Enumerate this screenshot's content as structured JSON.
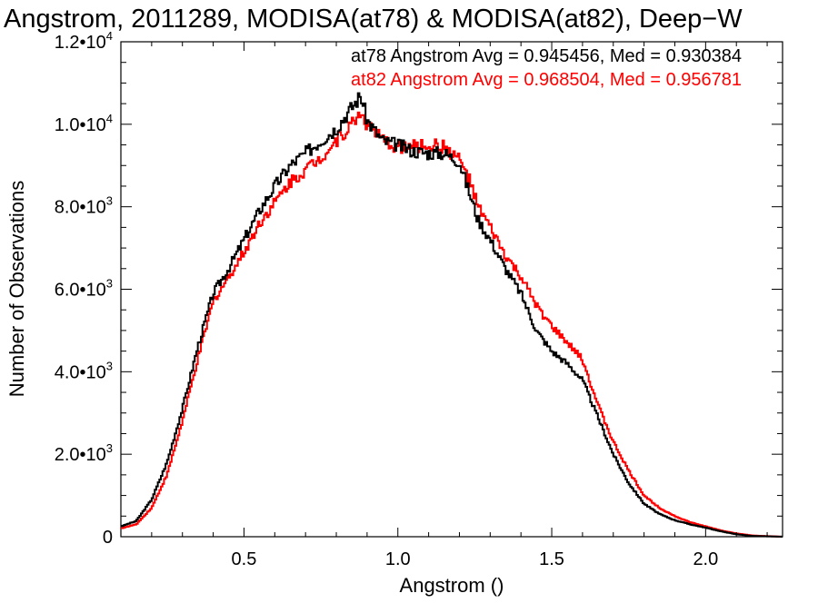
{
  "chart_data": {
    "type": "line",
    "title": "Angstrom, 2011289, MODISA(at78) & MODISA(at82), Deep−W",
    "xlabel": "Angstrom ()",
    "ylabel": "Number of Observations",
    "xlim": [
      0.1,
      2.25
    ],
    "ylim": [
      0,
      12000
    ],
    "x_ticks": [
      0.5,
      1.0,
      1.5,
      2.0
    ],
    "x_tick_labels": [
      "0.5",
      "1.0",
      "1.5",
      "2.0"
    ],
    "y_ticks": [
      0,
      2000,
      4000,
      6000,
      8000,
      10000,
      12000
    ],
    "y_tick_labels": [
      {
        "mant": "0",
        "sup": ""
      },
      {
        "mant": "2.0•10",
        "sup": "3"
      },
      {
        "mant": "4.0•10",
        "sup": "3"
      },
      {
        "mant": "6.0•10",
        "sup": "3"
      },
      {
        "mant": "8.0•10",
        "sup": "3"
      },
      {
        "mant": "1.0•10",
        "sup": "4"
      },
      {
        "mant": "1.2•10",
        "sup": "4"
      }
    ],
    "legend_placement": "top-right",
    "series": [
      {
        "name": "at78",
        "color": "#000000",
        "legend_text": "at78 Angstrom Avg = 0.945456, Med = 0.930384",
        "points": [
          [
            0.1,
            250
          ],
          [
            0.15,
            380
          ],
          [
            0.2,
            900
          ],
          [
            0.25,
            1800
          ],
          [
            0.3,
            3100
          ],
          [
            0.35,
            4600
          ],
          [
            0.4,
            5900
          ],
          [
            0.45,
            6500
          ],
          [
            0.5,
            7200
          ],
          [
            0.55,
            7900
          ],
          [
            0.6,
            8500
          ],
          [
            0.65,
            9000
          ],
          [
            0.7,
            9300
          ],
          [
            0.75,
            9600
          ],
          [
            0.8,
            9900
          ],
          [
            0.85,
            10400
          ],
          [
            0.88,
            10700
          ],
          [
            0.9,
            10100
          ],
          [
            0.95,
            9600
          ],
          [
            1.0,
            9500
          ],
          [
            1.05,
            9350
          ],
          [
            1.1,
            9300
          ],
          [
            1.15,
            9300
          ],
          [
            1.2,
            9100
          ],
          [
            1.23,
            8400
          ],
          [
            1.26,
            7700
          ],
          [
            1.3,
            7200
          ],
          [
            1.35,
            6500
          ],
          [
            1.4,
            5900
          ],
          [
            1.45,
            5000
          ],
          [
            1.5,
            4500
          ],
          [
            1.55,
            4200
          ],
          [
            1.6,
            3800
          ],
          [
            1.65,
            2900
          ],
          [
            1.7,
            2000
          ],
          [
            1.75,
            1300
          ],
          [
            1.8,
            800
          ],
          [
            1.85,
            550
          ],
          [
            1.9,
            400
          ],
          [
            1.95,
            300
          ],
          [
            2.0,
            220
          ],
          [
            2.05,
            130
          ],
          [
            2.1,
            60
          ],
          [
            2.15,
            20
          ],
          [
            2.25,
            0
          ]
        ]
      },
      {
        "name": "at82",
        "color": "#ff0000",
        "legend_text": "at82 Angstrom Avg = 0.968504, Med = 0.956781",
        "points": [
          [
            0.1,
            200
          ],
          [
            0.15,
            300
          ],
          [
            0.2,
            700
          ],
          [
            0.25,
            1500
          ],
          [
            0.3,
            2800
          ],
          [
            0.35,
            4300
          ],
          [
            0.4,
            5700
          ],
          [
            0.45,
            6300
          ],
          [
            0.5,
            6900
          ],
          [
            0.55,
            7600
          ],
          [
            0.6,
            8100
          ],
          [
            0.65,
            8600
          ],
          [
            0.7,
            8900
          ],
          [
            0.75,
            9200
          ],
          [
            0.8,
            9600
          ],
          [
            0.85,
            10000
          ],
          [
            0.88,
            10300
          ],
          [
            0.9,
            10000
          ],
          [
            0.95,
            9600
          ],
          [
            1.0,
            9450
          ],
          [
            1.05,
            9450
          ],
          [
            1.1,
            9500
          ],
          [
            1.15,
            9450
          ],
          [
            1.2,
            9150
          ],
          [
            1.23,
            8700
          ],
          [
            1.26,
            8000
          ],
          [
            1.3,
            7500
          ],
          [
            1.35,
            6800
          ],
          [
            1.4,
            6300
          ],
          [
            1.45,
            5600
          ],
          [
            1.5,
            5100
          ],
          [
            1.55,
            4700
          ],
          [
            1.6,
            4300
          ],
          [
            1.65,
            3200
          ],
          [
            1.7,
            2300
          ],
          [
            1.75,
            1600
          ],
          [
            1.8,
            1000
          ],
          [
            1.85,
            700
          ],
          [
            1.9,
            500
          ],
          [
            1.95,
            350
          ],
          [
            2.0,
            250
          ],
          [
            2.05,
            150
          ],
          [
            2.1,
            80
          ],
          [
            2.15,
            30
          ],
          [
            2.25,
            0
          ]
        ]
      }
    ]
  }
}
